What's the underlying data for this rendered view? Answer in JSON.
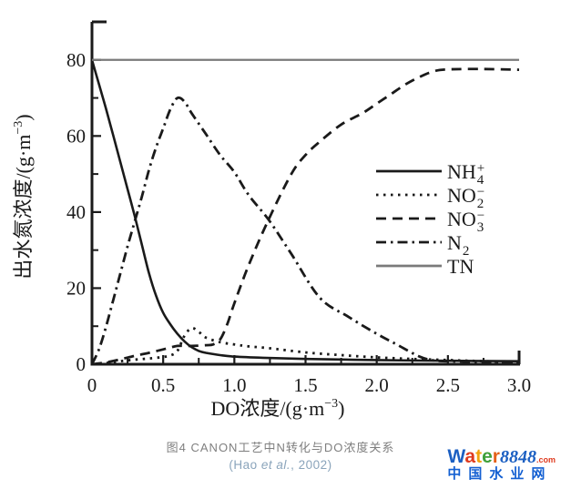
{
  "figure": {
    "caption": "图4  CANON工艺中N转化与DO浓度关系",
    "citation": {
      "prefix": "(Hao ",
      "italic": "et al.",
      "suffix": ", 2002)"
    }
  },
  "watermark": {
    "brand_letters": [
      {
        "ch": "W",
        "color": "#1b5fc2"
      },
      {
        "ch": "a",
        "color": "#df3b1f"
      },
      {
        "ch": "t",
        "color": "#f2a20d"
      },
      {
        "ch": "e",
        "color": "#3fa03a"
      },
      {
        "ch": "r",
        "color": "#e4611a"
      }
    ],
    "number": "8848",
    "number_color": "#1b5fc2",
    "tld": ".com",
    "tld_color": "#df3b1f",
    "subtitle": "中国水业网",
    "subtitle_color": "#1460d2"
  },
  "chart_data": {
    "type": "line",
    "title": "",
    "xlabel": {
      "pre": "DO浓度/(g·m",
      "sup": "−3",
      "post": ")"
    },
    "ylabel": {
      "pre": "出水氮浓度/(g·m",
      "sup": "−3",
      "post": ")"
    },
    "xlim": [
      0,
      3.0
    ],
    "ylim": [
      0,
      90
    ],
    "grid": false,
    "legend_position": "right-center",
    "x_major_ticks": [
      0,
      0.5,
      1.0,
      1.5,
      2.0,
      2.5,
      3.0
    ],
    "x_tick_labels": [
      "0",
      "0.5",
      "1.0",
      "1.5",
      "2.0",
      "2.5",
      "3.0"
    ],
    "x_minor_step": 0.25,
    "y_major_ticks": [
      0,
      20,
      40,
      60,
      80
    ],
    "y_tick_labels": [
      "0",
      "20",
      "40",
      "60",
      "80"
    ],
    "y_minor_step": 10,
    "axis_color": "#1a1a1a",
    "tn_color": "#7a7a7a",
    "series": [
      {
        "name": "NH4+",
        "label": {
          "base": "NH",
          "sub": "4",
          "sup": "+"
        },
        "style": "solid",
        "color": "#1a1a1a",
        "width": 2.6,
        "x": [
          0,
          0.05,
          0.1,
          0.15,
          0.2,
          0.25,
          0.3,
          0.35,
          0.4,
          0.45,
          0.5,
          0.55,
          0.6,
          0.65,
          0.7,
          0.75,
          0.8,
          0.9,
          1.0,
          1.2,
          1.5,
          2.0,
          2.5,
          3.0
        ],
        "y": [
          80,
          73.5,
          67,
          60,
          53,
          46,
          39,
          31.5,
          24,
          18,
          13.5,
          10.5,
          8,
          6,
          4.5,
          3.5,
          3,
          2.4,
          2,
          1.7,
          1.4,
          1.1,
          0.9,
          0.8
        ]
      },
      {
        "name": "NO2-",
        "label": {
          "base": "NO",
          "sub": "2",
          "sup": "−"
        },
        "style": "dotted",
        "color": "#1a1a1a",
        "width": 2.8,
        "x": [
          0,
          0.1,
          0.2,
          0.3,
          0.4,
          0.5,
          0.55,
          0.6,
          0.65,
          0.7,
          0.75,
          0.8,
          0.9,
          1.0,
          1.1,
          1.25,
          1.5,
          1.75,
          2.0,
          2.25,
          2.5,
          2.75,
          3.0
        ],
        "y": [
          0,
          0.3,
          0.8,
          1.2,
          1.5,
          1.9,
          2.3,
          3.5,
          7.5,
          9.5,
          8.5,
          7,
          5.8,
          5.2,
          4.7,
          4.2,
          3.1,
          2.4,
          1.8,
          1.4,
          1.1,
          0.8,
          0.6
        ]
      },
      {
        "name": "NO3-",
        "label": {
          "base": "NO",
          "sub": "3",
          "sup": "−"
        },
        "style": "dashed",
        "color": "#1a1a1a",
        "width": 2.8,
        "x": [
          0,
          0.1,
          0.2,
          0.3,
          0.4,
          0.5,
          0.6,
          0.7,
          0.8,
          0.85,
          0.9,
          0.95,
          1.0,
          1.1,
          1.24,
          1.4,
          1.5,
          1.6,
          1.75,
          1.9,
          2.0,
          2.1,
          2.2,
          2.3,
          2.4,
          2.5,
          2.75,
          3.0
        ],
        "y": [
          0,
          0.5,
          1.3,
          2.2,
          3,
          3.9,
          4.8,
          4.8,
          5,
          5.2,
          6.5,
          10.5,
          16,
          26,
          38,
          50,
          55,
          58.5,
          63,
          66,
          68.5,
          71,
          73.5,
          75.5,
          77,
          77.5,
          77.6,
          77.4
        ]
      },
      {
        "name": "N2",
        "label": {
          "base": "N",
          "sub": "2",
          "sup": ""
        },
        "style": "dashdot",
        "color": "#1a1a1a",
        "width": 2.8,
        "x": [
          0,
          0.05,
          0.1,
          0.15,
          0.2,
          0.25,
          0.3,
          0.35,
          0.4,
          0.45,
          0.5,
          0.55,
          0.6,
          0.65,
          0.7,
          0.8,
          0.9,
          1.0,
          1.1,
          1.24,
          1.4,
          1.6,
          1.8,
          2.0,
          2.15,
          2.3,
          2.4,
          2.5,
          2.75,
          3.0
        ],
        "y": [
          0,
          4,
          10,
          17,
          24,
          31,
          37.5,
          44,
          51,
          57,
          62,
          67,
          70,
          69,
          66,
          60.5,
          55,
          50.5,
          44.5,
          38,
          29,
          17.5,
          12.5,
          8,
          5,
          2,
          1,
          0.8,
          0.6,
          0.5
        ]
      },
      {
        "name": "TN",
        "label": {
          "base": "TN",
          "sub": "",
          "sup": ""
        },
        "style": "solid",
        "color": "#7a7a7a",
        "width": 2.2,
        "x": [
          0,
          3.0
        ],
        "y": [
          80,
          80
        ]
      }
    ]
  }
}
